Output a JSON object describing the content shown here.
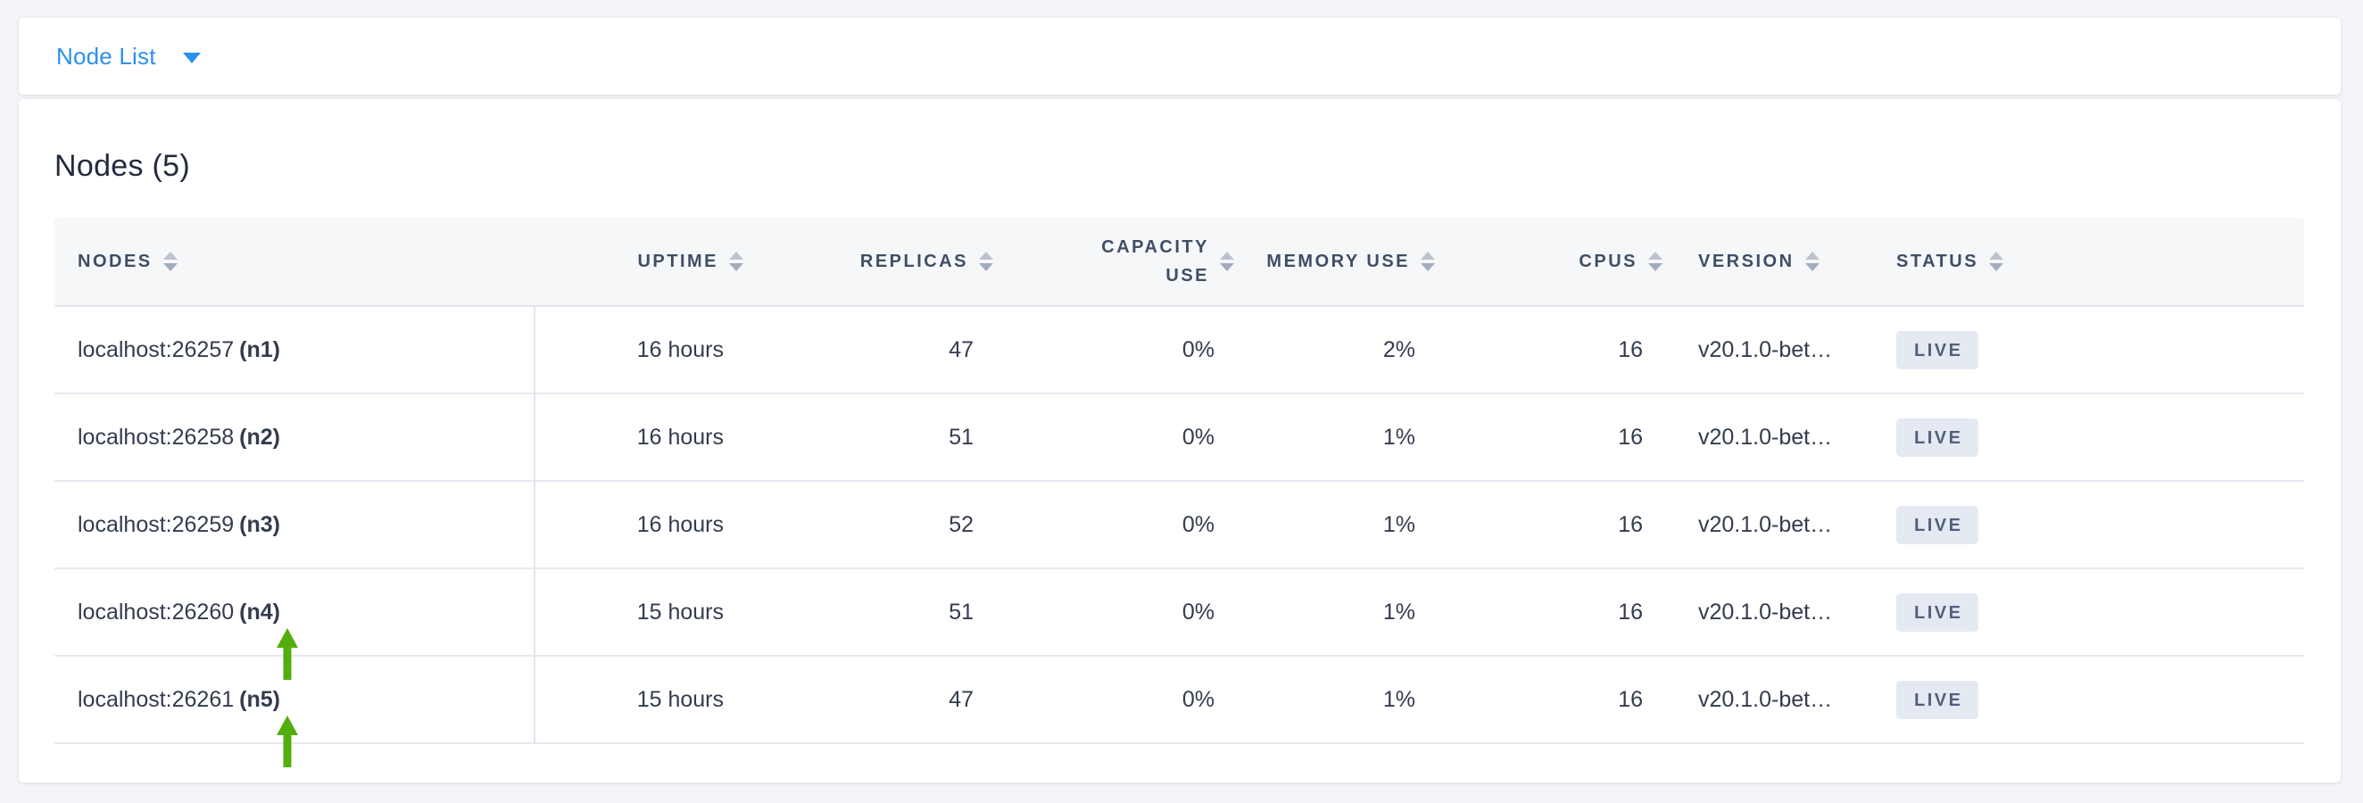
{
  "topbar": {
    "dropdown_label": "Node List"
  },
  "panel": {
    "title": "Nodes (5)"
  },
  "table": {
    "columns": [
      {
        "key": "nodes",
        "label": "NODES",
        "align": "left"
      },
      {
        "key": "uptime",
        "label": "UPTIME",
        "align": "right"
      },
      {
        "key": "replicas",
        "label": "REPLICAS",
        "align": "right"
      },
      {
        "key": "capacity_use",
        "label": "CAPACITY USE",
        "align": "right",
        "wrap": true
      },
      {
        "key": "memory_use",
        "label": "MEMORY USE",
        "align": "right"
      },
      {
        "key": "cpus",
        "label": "CPUS",
        "align": "right"
      },
      {
        "key": "version",
        "label": "VERSION",
        "align": "left"
      },
      {
        "key": "status",
        "label": "STATUS",
        "align": "left"
      }
    ],
    "rows": [
      {
        "address": "localhost:26257",
        "id": "(n1)",
        "uptime": "16 hours",
        "replicas": "47",
        "capacity_use": "0%",
        "memory_use": "2%",
        "cpus": "16",
        "version": "v20.1.0-bet…",
        "status": "LIVE",
        "annotated": false
      },
      {
        "address": "localhost:26258",
        "id": "(n2)",
        "uptime": "16 hours",
        "replicas": "51",
        "capacity_use": "0%",
        "memory_use": "1%",
        "cpus": "16",
        "version": "v20.1.0-bet…",
        "status": "LIVE",
        "annotated": false
      },
      {
        "address": "localhost:26259",
        "id": "(n3)",
        "uptime": "16 hours",
        "replicas": "52",
        "capacity_use": "0%",
        "memory_use": "1%",
        "cpus": "16",
        "version": "v20.1.0-bet…",
        "status": "LIVE",
        "annotated": false
      },
      {
        "address": "localhost:26260",
        "id": "(n4)",
        "uptime": "15 hours",
        "replicas": "51",
        "capacity_use": "0%",
        "memory_use": "1%",
        "cpus": "16",
        "version": "v20.1.0-bet…",
        "status": "LIVE",
        "annotated": true
      },
      {
        "address": "localhost:26261",
        "id": "(n5)",
        "uptime": "15 hours",
        "replicas": "47",
        "capacity_use": "0%",
        "memory_use": "1%",
        "cpus": "16",
        "version": "v20.1.0-bet…",
        "status": "LIVE",
        "annotated": true
      }
    ]
  },
  "icons": {
    "dropdown_caret": "chevron-down-icon",
    "sort": "sort-carets-icon",
    "annotation": "green-up-arrow"
  },
  "colors": {
    "accent_blue": "#2b8ff0",
    "arrow_green": "#53ae0d",
    "badge_bg": "#e4e9f2",
    "badge_text": "#53607c",
    "header_text": "#3f4e66",
    "cell_text": "#333c4e",
    "page_bg": "#f4f5f9"
  }
}
